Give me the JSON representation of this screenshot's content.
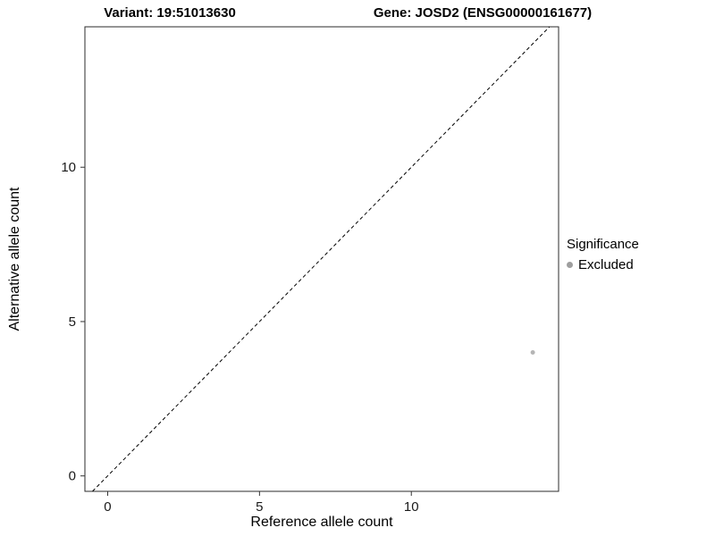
{
  "chart_data": {
    "type": "scatter",
    "title_variant": "Variant: 19:51013630",
    "title_gene": "Gene: JOSD2 (ENSG00000161677)",
    "xlabel": "Reference allele count",
    "ylabel": "Alternative allele count",
    "xlim": [
      -0.75,
      14.85
    ],
    "ylim": [
      -0.5,
      14.55
    ],
    "xticks": [
      0,
      5,
      10
    ],
    "yticks": [
      0,
      5,
      10
    ],
    "grid": false,
    "identity_line": {
      "present": true,
      "style": "dashed",
      "color": "#000000"
    },
    "points": [
      {
        "x": 14,
        "y": 4,
        "series": "Excluded"
      }
    ],
    "point_color": "#b5b5b5",
    "panel_border_color": "#2b2b2b",
    "tick_color": "#333333",
    "tick_label_color": "#1a1a1a",
    "legend": {
      "position": "right",
      "title": "Significance",
      "items": [
        {
          "label": "Excluded",
          "color": "#9e9e9e"
        }
      ]
    }
  }
}
